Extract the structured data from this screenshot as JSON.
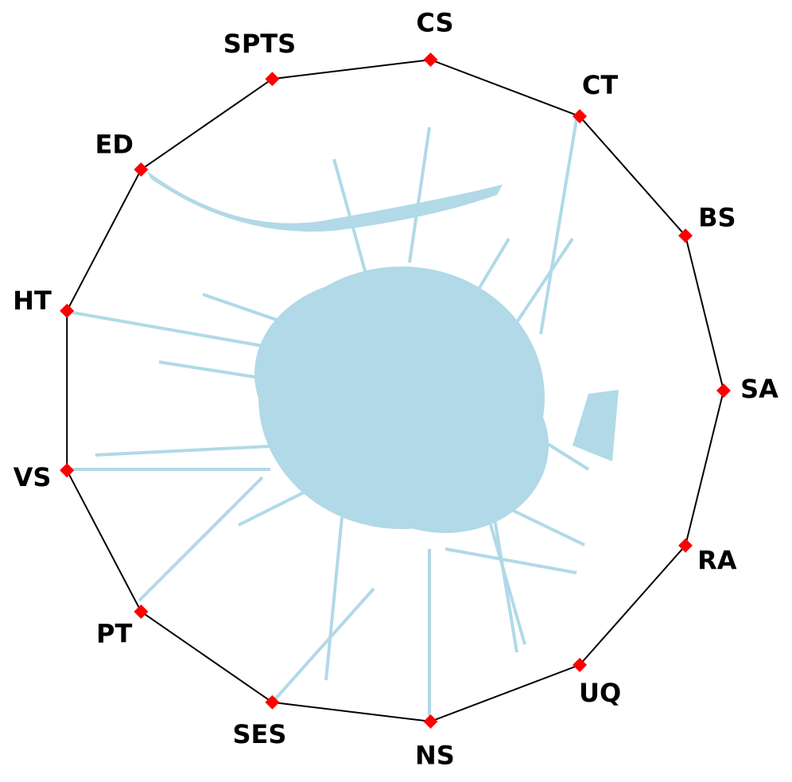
{
  "chart_data": {
    "type": "radviz",
    "anchors": [
      "SA",
      "BS",
      "CT",
      "CS",
      "SPTS",
      "ED",
      "HT",
      "VS",
      "PT",
      "SES",
      "NS",
      "UQ",
      "RA"
    ],
    "anchor_color": "#ff0000",
    "point_color": "#add8e6",
    "outline_color": "#000000"
  }
}
